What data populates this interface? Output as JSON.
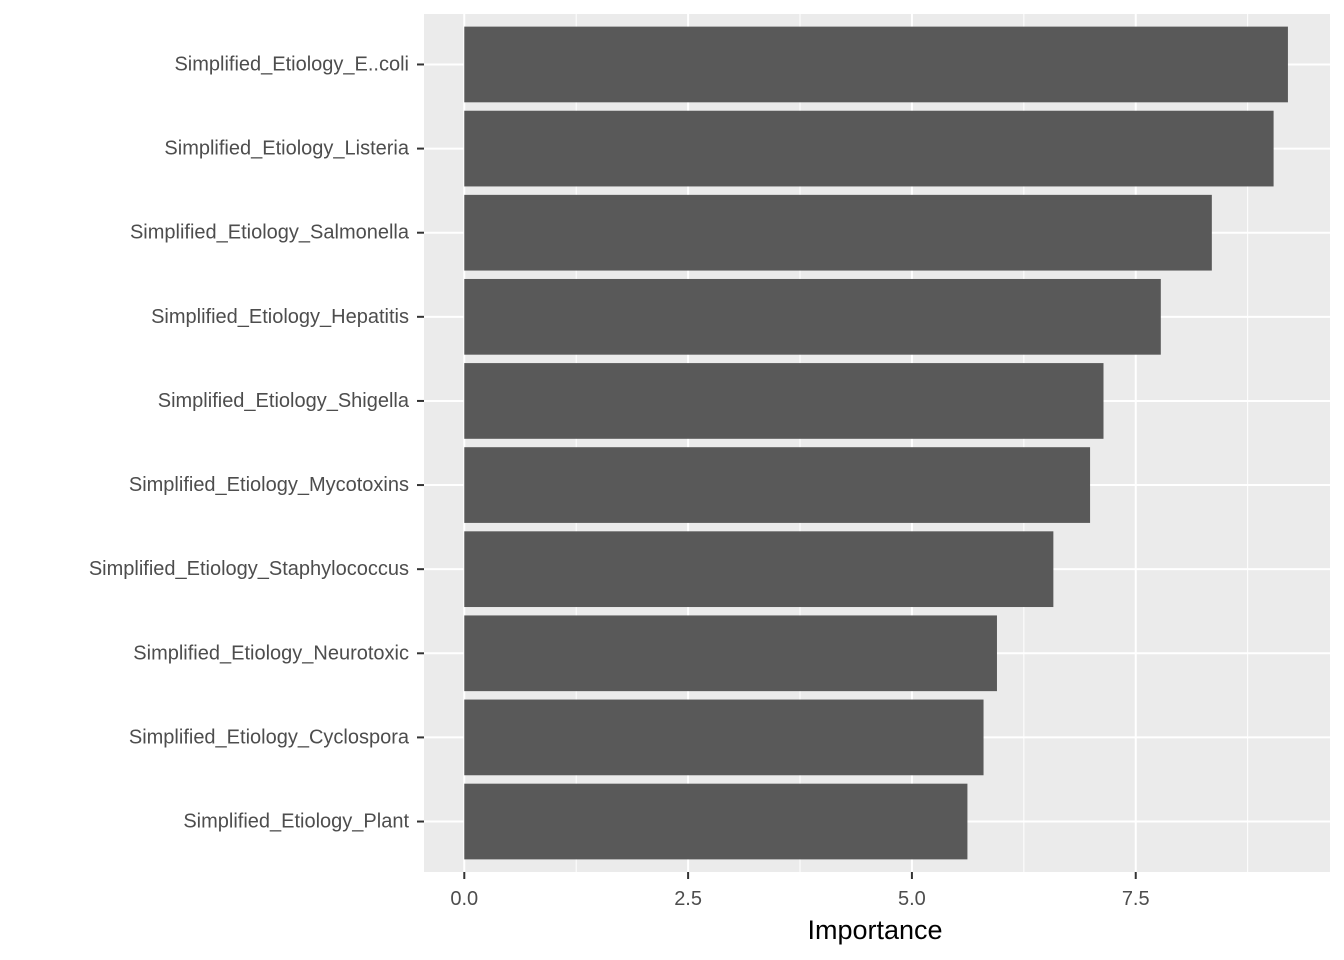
{
  "chart_data": {
    "type": "bar",
    "orientation": "horizontal",
    "categories": [
      "Simplified_Etiology_E..coli",
      "Simplified_Etiology_Listeria",
      "Simplified_Etiology_Salmonella",
      "Simplified_Etiology_Hepatitis",
      "Simplified_Etiology_Shigella",
      "Simplified_Etiology_Mycotoxins",
      "Simplified_Etiology_Staphylococcus",
      "Simplified_Etiology_Neurotoxic",
      "Simplified_Etiology_Cyclospora",
      "Simplified_Etiology_Plant"
    ],
    "values": [
      9.2,
      9.04,
      8.35,
      7.78,
      7.14,
      6.99,
      6.58,
      5.95,
      5.8,
      5.62
    ],
    "xlabel": "Importance",
    "ylabel": "",
    "xlim": [
      -0.45,
      9.67
    ],
    "xticks": [
      0.0,
      2.5,
      5.0,
      7.5
    ],
    "xtick_labels": [
      "0.0",
      "2.5",
      "5.0",
      "7.5"
    ],
    "grid": true,
    "colors": {
      "panel_background": "#ebebeb",
      "grid_major": "#ffffff",
      "bar_fill": "#595959",
      "tick_text": "#4d4d4d",
      "tick_mark": "#333333"
    }
  }
}
